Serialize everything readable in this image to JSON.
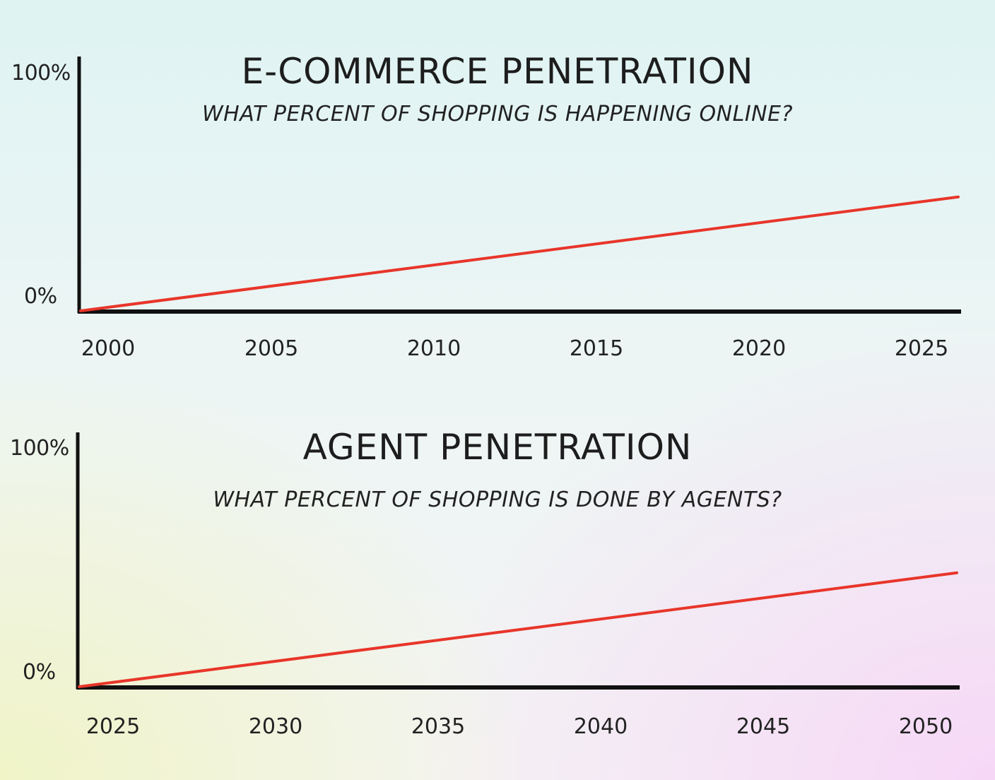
{
  "chart_data": [
    {
      "type": "line",
      "title": "E-COMMERCE PENETRATION",
      "subtitle": "WHAT PERCENT OF SHOPPING IS HAPPENING ONLINE?",
      "yticks": [
        "100%",
        "0%"
      ],
      "xticks": [
        "2000",
        "2005",
        "2010",
        "2015",
        "2020",
        "2025"
      ],
      "xlim": [
        2000,
        2025
      ],
      "ylim": [
        0,
        100
      ],
      "grid": false,
      "line_color": "#e8352a",
      "series": [
        {
          "x": [
            2000,
            2025
          ],
          "y": [
            0,
            48
          ]
        }
      ]
    },
    {
      "type": "line",
      "title": "AGENT PENETRATION",
      "subtitle": "WHAT PERCENT OF SHOPPING IS DONE BY AGENTS?",
      "yticks": [
        "100%",
        "0%"
      ],
      "xticks": [
        "2025",
        "2030",
        "2035",
        "2040",
        "2045",
        "2050"
      ],
      "xlim": [
        2025,
        2050
      ],
      "ylim": [
        0,
        100
      ],
      "grid": false,
      "line_color": "#e8352a",
      "series": [
        {
          "x": [
            2025,
            2050
          ],
          "y": [
            0,
            48
          ]
        }
      ]
    }
  ]
}
